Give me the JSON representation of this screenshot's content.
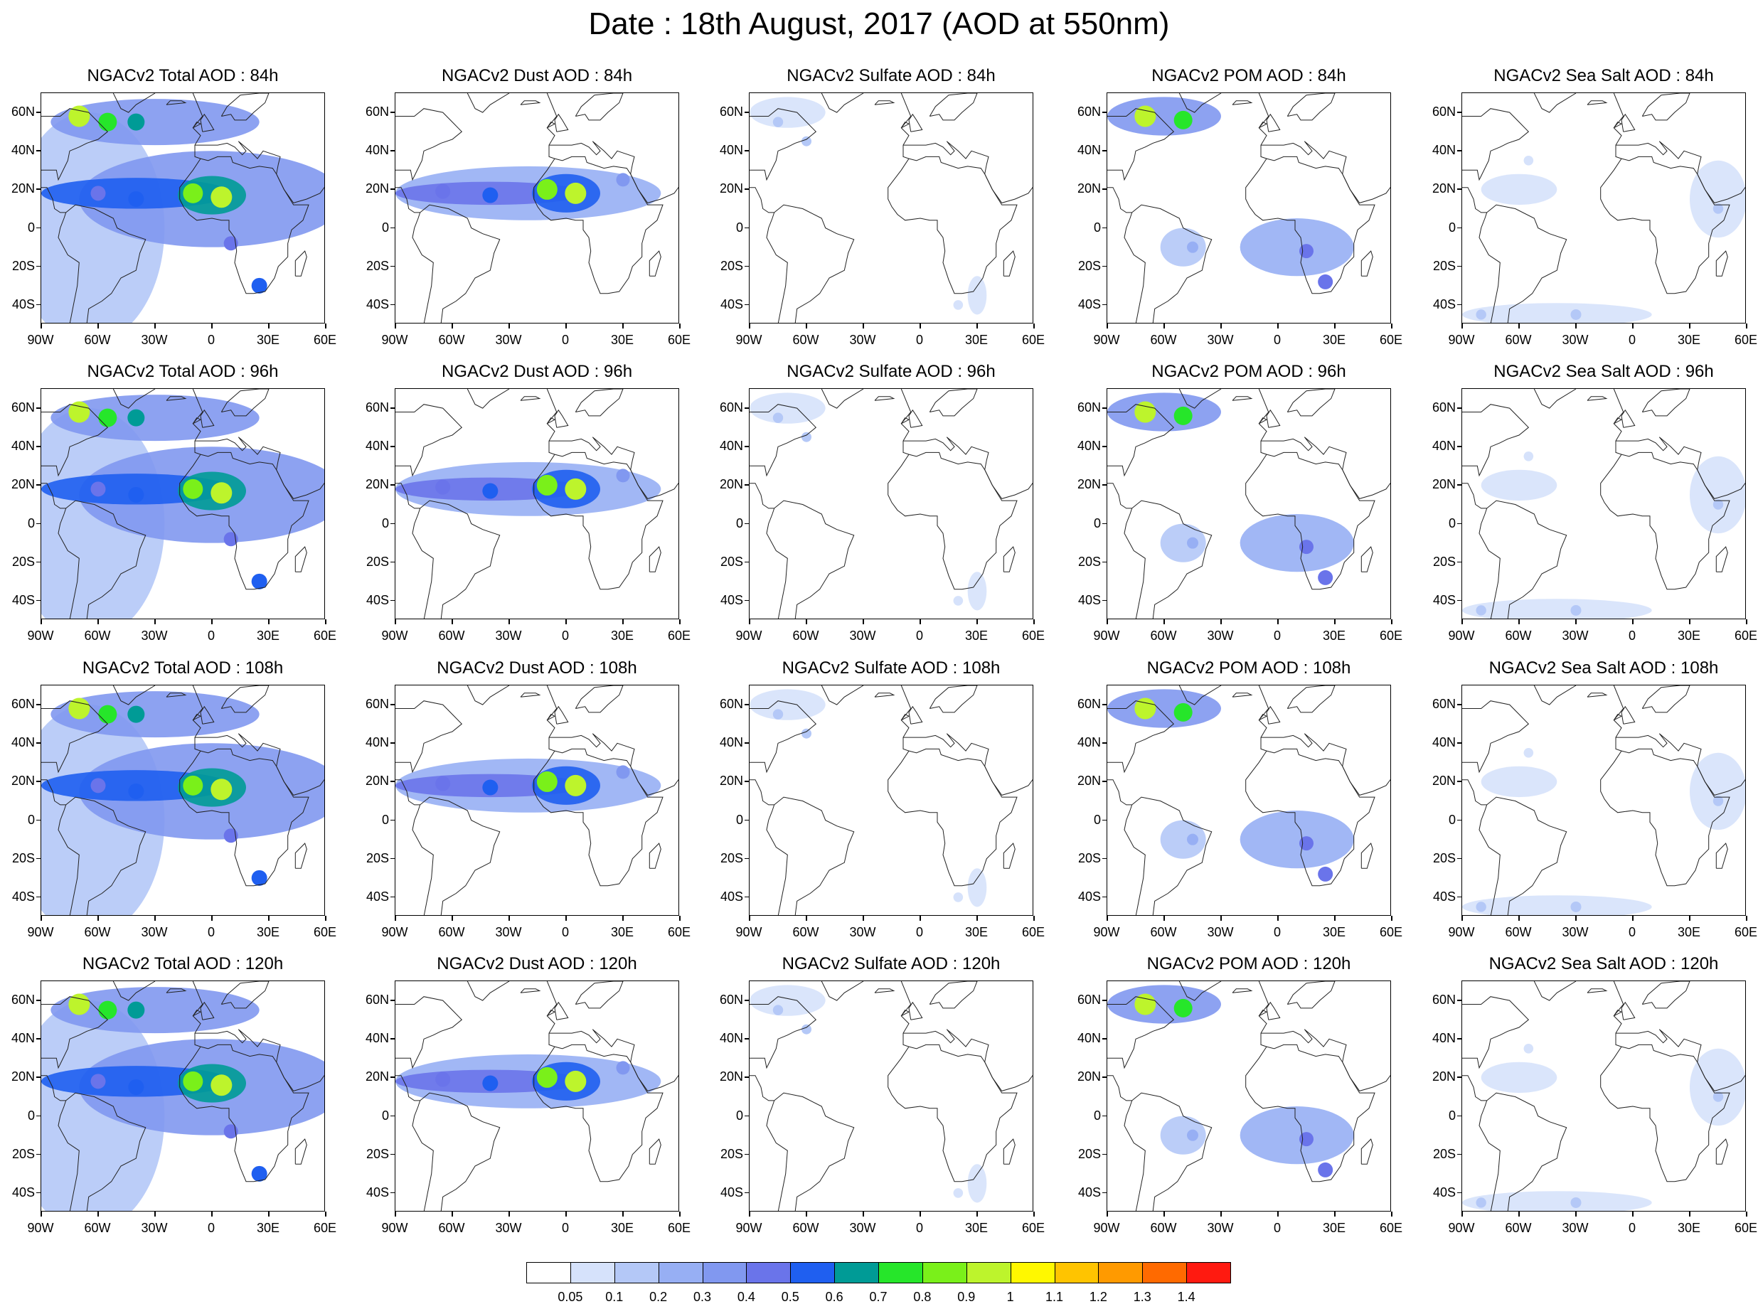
{
  "title": "Date : 18th August, 2017 (AOD at 550nm)",
  "panels": [
    {
      "title": "NGACv2 Total AOD : 84h",
      "species": "total",
      "hour": 84
    },
    {
      "title": "NGACv2 Dust AOD : 84h",
      "species": "dust",
      "hour": 84
    },
    {
      "title": "NGACv2 Sulfate AOD : 84h",
      "species": "sulfate",
      "hour": 84
    },
    {
      "title": "NGACv2 POM AOD : 84h",
      "species": "pom",
      "hour": 84
    },
    {
      "title": "NGACv2 Sea Salt AOD : 84h",
      "species": "seasalt",
      "hour": 84
    },
    {
      "title": "NGACv2 Total AOD : 96h",
      "species": "total",
      "hour": 96
    },
    {
      "title": "NGACv2 Dust AOD : 96h",
      "species": "dust",
      "hour": 96
    },
    {
      "title": "NGACv2 Sulfate AOD : 96h",
      "species": "sulfate",
      "hour": 96
    },
    {
      "title": "NGACv2 POM AOD : 96h",
      "species": "pom",
      "hour": 96
    },
    {
      "title": "NGACv2 Sea Salt AOD : 96h",
      "species": "seasalt",
      "hour": 96
    },
    {
      "title": "NGACv2 Total AOD : 108h",
      "species": "total",
      "hour": 108
    },
    {
      "title": "NGACv2 Dust AOD : 108h",
      "species": "dust",
      "hour": 108
    },
    {
      "title": "NGACv2 Sulfate AOD : 108h",
      "species": "sulfate",
      "hour": 108
    },
    {
      "title": "NGACv2 POM AOD : 108h",
      "species": "pom",
      "hour": 108
    },
    {
      "title": "NGACv2 Sea Salt AOD : 108h",
      "species": "seasalt",
      "hour": 108
    },
    {
      "title": "NGACv2 Total AOD : 120h",
      "species": "total",
      "hour": 120
    },
    {
      "title": "NGACv2 Dust AOD : 120h",
      "species": "dust",
      "hour": 120
    },
    {
      "title": "NGACv2 Sulfate AOD : 120h",
      "species": "sulfate",
      "hour": 120
    },
    {
      "title": "NGACv2 POM AOD : 120h",
      "species": "pom",
      "hour": 120
    },
    {
      "title": "NGACv2 Sea Salt  AOD : 120h",
      "species": "seasalt",
      "hour": 120
    }
  ],
  "map_extent": {
    "lon_min": -90,
    "lon_max": 60,
    "lat_min": -50,
    "lat_max": 70
  },
  "lat_ticks": [
    {
      "value": 60,
      "label": "60N"
    },
    {
      "value": 40,
      "label": "40N"
    },
    {
      "value": 20,
      "label": "20N"
    },
    {
      "value": 0,
      "label": "0"
    },
    {
      "value": -20,
      "label": "20S"
    },
    {
      "value": -40,
      "label": "40S"
    }
  ],
  "lon_ticks": [
    {
      "value": -90,
      "label": "90W"
    },
    {
      "value": -60,
      "label": "60W"
    },
    {
      "value": -30,
      "label": "30W"
    },
    {
      "value": 0,
      "label": "0"
    },
    {
      "value": 30,
      "label": "30E"
    },
    {
      "value": 60,
      "label": "60E"
    }
  ],
  "colorbar": {
    "labels": [
      "0.05",
      "0.1",
      "0.2",
      "0.3",
      "0.4",
      "0.5",
      "0.6",
      "0.7",
      "0.8",
      "0.9",
      "1",
      "1.1",
      "1.2",
      "1.3",
      "1.4"
    ],
    "colors": [
      "#ffffff",
      "#d6e2fb",
      "#b4c8f7",
      "#97aff4",
      "#8198f0",
      "#6a74ea",
      "#1f5ff0",
      "#009b96",
      "#26e62a",
      "#7af01a",
      "#bdf42c",
      "#fff800",
      "#ffc400",
      "#ff9a00",
      "#ff6a00",
      "#ff1a10"
    ]
  },
  "fields": {
    "total": [
      {
        "lon": -70,
        "lat": 58,
        "v": 0.9
      },
      {
        "lon": -55,
        "lat": 55,
        "v": 0.7
      },
      {
        "lon": -40,
        "lat": 55,
        "v": 0.6
      },
      {
        "lon": -10,
        "lat": 18,
        "v": 0.8
      },
      {
        "lon": 5,
        "lat": 16,
        "v": 0.9
      },
      {
        "lon": -40,
        "lat": 15,
        "v": 0.5
      },
      {
        "lon": -60,
        "lat": 18,
        "v": 0.45
      },
      {
        "lon": 10,
        "lat": -8,
        "v": 0.4
      },
      {
        "lon": 25,
        "lat": -30,
        "v": 0.5
      }
    ],
    "dust": [
      {
        "lon": -10,
        "lat": 20,
        "v": 0.85
      },
      {
        "lon": 5,
        "lat": 18,
        "v": 0.9
      },
      {
        "lon": -40,
        "lat": 17,
        "v": 0.5
      },
      {
        "lon": -65,
        "lat": 19,
        "v": 0.45
      },
      {
        "lon": 30,
        "lat": 25,
        "v": 0.35
      }
    ],
    "sulfate": [
      {
        "lon": -75,
        "lat": 55,
        "v": 0.12
      },
      {
        "lon": -60,
        "lat": 45,
        "v": 0.1
      },
      {
        "lon": 20,
        "lat": -40,
        "v": 0.08
      }
    ],
    "pom": [
      {
        "lon": -70,
        "lat": 58,
        "v": 0.9
      },
      {
        "lon": -50,
        "lat": 56,
        "v": 0.7
      },
      {
        "lon": 15,
        "lat": -12,
        "v": 0.4
      },
      {
        "lon": 25,
        "lat": -28,
        "v": 0.45
      },
      {
        "lon": -45,
        "lat": -10,
        "v": 0.2
      }
    ],
    "seasalt": [
      {
        "lon": -30,
        "lat": -45,
        "v": 0.15
      },
      {
        "lon": -80,
        "lat": -45,
        "v": 0.12
      },
      {
        "lon": 45,
        "lat": 10,
        "v": 0.12
      },
      {
        "lon": -55,
        "lat": 35,
        "v": 0.08
      }
    ]
  }
}
